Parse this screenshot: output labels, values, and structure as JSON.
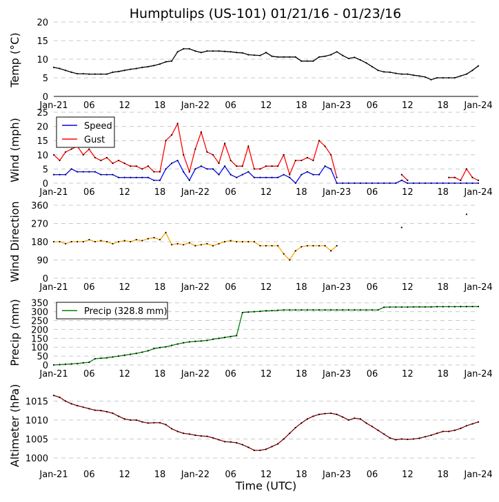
{
  "title": "Humptulips (US-101) 01/21/16 - 01/23/16",
  "xlabel": "Time (UTC)",
  "x_tick_labels": [
    "Jan-21",
    "06",
    "12",
    "18",
    "Jan-22",
    "06",
    "12",
    "18",
    "Jan-23",
    "06",
    "12",
    "18",
    "Jan-24"
  ],
  "x_range_hours": [
    0,
    72
  ],
  "chart_data": [
    {
      "type": "line",
      "ylabel": "Temp ($^\\circ$C)",
      "ylabel_display": "Temp (°C)",
      "ylim": [
        0,
        20
      ],
      "yticks": [
        0,
        5,
        10,
        15,
        20
      ],
      "grid": true,
      "x_hours": "0..72 hourly",
      "series": [
        {
          "color": "#000000",
          "values": [
            7.8,
            7.5,
            7,
            6.5,
            6.1,
            6.1,
            6,
            6,
            6,
            6,
            6.5,
            6.7,
            7,
            7.3,
            7.5,
            7.8,
            8,
            8.3,
            8.7,
            9.3,
            9.5,
            12,
            12.8,
            12.8,
            12.2,
            11.8,
            12.2,
            12.2,
            12.2,
            12.1,
            12,
            11.8,
            11.7,
            11.2,
            11.1,
            11,
            11.8,
            10.8,
            10.6,
            10.6,
            10.6,
            10.6,
            9.5,
            9.5,
            9.5,
            10.6,
            10.8,
            11.2,
            12,
            11,
            10.2,
            10.5,
            9.8,
            9,
            8,
            7,
            6.6,
            6.5,
            6.2,
            6,
            6,
            5.7,
            5.5,
            5.2,
            4.5,
            5,
            5,
            5,
            5,
            5.5,
            6,
            7,
            8.2
          ]
        }
      ]
    },
    {
      "type": "line",
      "ylabel": "Wind (mph)",
      "ylim": [
        0,
        25
      ],
      "yticks": [
        0,
        5,
        10,
        15,
        20,
        25
      ],
      "grid": true,
      "legend": "top-left",
      "series": [
        {
          "name": "Speed",
          "color": "#0000ff",
          "values": [
            3,
            3,
            3,
            5,
            4,
            4,
            4,
            4,
            3,
            3,
            3,
            2,
            2,
            2,
            2,
            2,
            2,
            1,
            1,
            5,
            7,
            8,
            4,
            1,
            5,
            6,
            5,
            5,
            3,
            6,
            3,
            2,
            3,
            4,
            2,
            2,
            2,
            2,
            2,
            3,
            2,
            0,
            3,
            4,
            3,
            3,
            6,
            5,
            0,
            0,
            0,
            0,
            0,
            0,
            0,
            0,
            0,
            0,
            0,
            1,
            0,
            0,
            0,
            0,
            0,
            0,
            0,
            0,
            0,
            0,
            0,
            0,
            0
          ]
        },
        {
          "name": "Gust",
          "color": "#ff0000",
          "values": [
            10,
            8,
            11,
            12,
            13,
            10,
            12,
            9,
            8,
            9,
            7,
            8,
            7,
            6,
            6,
            5,
            6,
            4,
            4,
            15,
            17,
            21,
            10,
            4,
            12,
            18,
            11,
            10,
            7,
            14,
            8,
            6,
            6,
            13,
            5,
            5,
            6,
            6,
            6,
            10,
            3,
            8,
            8,
            9,
            8,
            15,
            13,
            10,
            2,
            null,
            null,
            null,
            null,
            null,
            null,
            null,
            null,
            null,
            null,
            3,
            1,
            null,
            null,
            null,
            null,
            null,
            null,
            2,
            2,
            1,
            5,
            2,
            1
          ]
        }
      ]
    },
    {
      "type": "line",
      "ylabel": "Wind Direction",
      "ylim": [
        0,
        360
      ],
      "yticks": [
        0,
        90,
        180,
        270,
        360
      ],
      "grid": true,
      "series": [
        {
          "color": "#ffa500",
          "values": [
            180,
            180,
            170,
            180,
            180,
            180,
            190,
            180,
            185,
            180,
            170,
            180,
            185,
            180,
            190,
            185,
            195,
            200,
            190,
            225,
            165,
            170,
            165,
            175,
            160,
            165,
            170,
            160,
            170,
            180,
            185,
            180,
            180,
            180,
            180,
            160,
            160,
            160,
            160,
            120,
            90,
            135,
            155,
            160,
            160,
            160,
            160,
            135,
            160,
            null,
            null,
            null,
            null,
            null,
            null,
            null,
            null,
            null,
            null,
            250,
            null,
            null,
            null,
            null,
            null,
            null,
            null,
            null,
            null,
            null,
            315,
            null,
            null
          ]
        }
      ]
    },
    {
      "type": "line",
      "ylabel": "Precip (mm)",
      "ylim": [
        0,
        380
      ],
      "yticks": [
        0,
        50,
        100,
        150,
        200,
        250,
        300,
        350
      ],
      "grid": true,
      "legend": "top-left",
      "series": [
        {
          "name": "Precip (328.8 mm)",
          "color": "#008000",
          "values": [
            0,
            2,
            4,
            6,
            8,
            12,
            15,
            35,
            38,
            40,
            45,
            50,
            55,
            60,
            65,
            72,
            80,
            92,
            98,
            102,
            110,
            118,
            125,
            130,
            133,
            135,
            138,
            145,
            150,
            155,
            160,
            165,
            295,
            298,
            300,
            302,
            305,
            306,
            308,
            310,
            310,
            310,
            310,
            310,
            310,
            310,
            310,
            310,
            310,
            310,
            310,
            310,
            310,
            310,
            310,
            310,
            325,
            326,
            326,
            326,
            326,
            327,
            327,
            327,
            327,
            328,
            328,
            328,
            328,
            328.5,
            328.5,
            328.8,
            328.8
          ]
        }
      ]
    },
    {
      "type": "line",
      "ylabel": "Altimeter (hPa)",
      "ylim": [
        998,
        1018
      ],
      "yticks": [
        1000,
        1005,
        1010,
        1015
      ],
      "grid": true,
      "series": [
        {
          "color": "#8b0000",
          "values": [
            1016.5,
            1016,
            1015,
            1014.3,
            1013.8,
            1013.4,
            1013,
            1012.6,
            1012.5,
            1012.2,
            1011.8,
            1011,
            1010.3,
            1010,
            1010,
            1009.5,
            1009.2,
            1009.3,
            1009.3,
            1008.8,
            1007.7,
            1007,
            1006.5,
            1006.3,
            1006,
            1005.8,
            1005.7,
            1005.3,
            1004.8,
            1004.3,
            1004.2,
            1004,
            1003.5,
            1002.8,
            1002,
            1002,
            1002.3,
            1003,
            1003.7,
            1005,
            1006.5,
            1008,
            1009.2,
            1010.3,
            1011,
            1011.5,
            1011.7,
            1011.8,
            1011.5,
            1010.8,
            1010,
            1010.5,
            1010.3,
            1009.2,
            1008.3,
            1007.3,
            1006.3,
            1005.3,
            1004.8,
            1005,
            1004.9,
            1005,
            1005.2,
            1005.6,
            1006,
            1006.5,
            1007,
            1007,
            1007.3,
            1007.8,
            1008.5,
            1009,
            1009.5
          ]
        }
      ]
    }
  ]
}
